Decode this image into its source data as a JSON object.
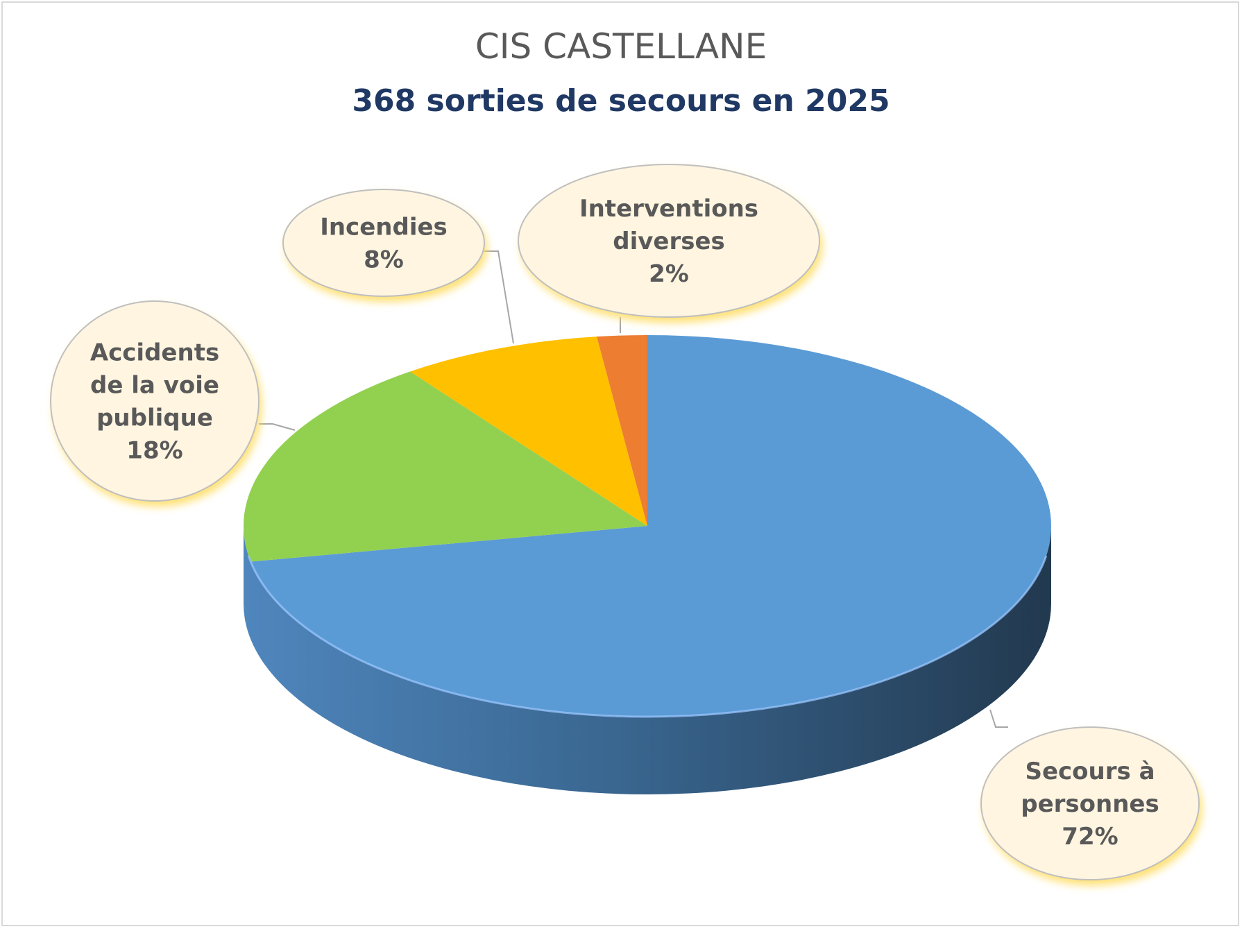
{
  "chart_data": {
    "type": "pie",
    "title": "CIS CASTELLANE",
    "subtitle": "368 sorties de secours en 2025",
    "slices": [
      {
        "label_lines": [
          "Secours à",
          "personnes"
        ],
        "percent_label": "72%",
        "value": 72,
        "color": "#5b9bd5"
      },
      {
        "label_lines": [
          "Accidents",
          "de la voie",
          "publique"
        ],
        "percent_label": "18%",
        "value": 18,
        "color": "#92d050"
      },
      {
        "label_lines": [
          "Incendies"
        ],
        "percent_label": "8%",
        "value": 8,
        "color": "#ffc000"
      },
      {
        "label_lines": [
          "Interventions",
          "diverses"
        ],
        "percent_label": "2%",
        "value": 2,
        "color": "#ed7d31"
      }
    ]
  }
}
